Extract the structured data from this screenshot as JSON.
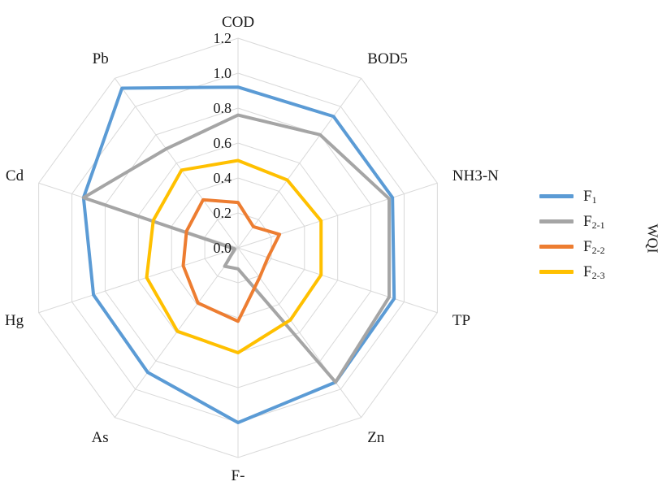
{
  "chart_data": {
    "type": "radar",
    "axis_title": "WQI",
    "categories": [
      "COD",
      "BOD5",
      "NH3-N",
      "TP",
      "Zn",
      "F-",
      "As",
      "Hg",
      "Cd",
      "Pb"
    ],
    "r_ticks": [
      "0.0",
      "0.2",
      "0.4",
      "0.6",
      "0.8",
      "1.0",
      "1.2"
    ],
    "r_range": [
      0,
      1.2
    ],
    "grid": true,
    "legend_position": "right",
    "series": [
      {
        "name": "F",
        "sub": "1",
        "color": "#5B9BD5",
        "values": [
          0.92,
          0.93,
          0.93,
          0.94,
          0.95,
          1.0,
          0.88,
          0.87,
          0.93,
          1.13
        ]
      },
      {
        "name": "F",
        "sub": "2-1",
        "color": "#A5A5A5",
        "values": [
          0.76,
          0.8,
          0.91,
          0.91,
          0.95,
          0.12,
          0.13,
          0.02,
          0.93,
          0.7
        ]
      },
      {
        "name": "F",
        "sub": "2-2",
        "color": "#ED7D31",
        "values": [
          0.26,
          0.15,
          0.25,
          0.18,
          0.21,
          0.42,
          0.39,
          0.33,
          0.31,
          0.34
        ]
      },
      {
        "name": "F",
        "sub": "2-3",
        "color": "#FFC000",
        "values": [
          0.5,
          0.48,
          0.5,
          0.5,
          0.51,
          0.6,
          0.59,
          0.55,
          0.51,
          0.55
        ]
      }
    ]
  }
}
